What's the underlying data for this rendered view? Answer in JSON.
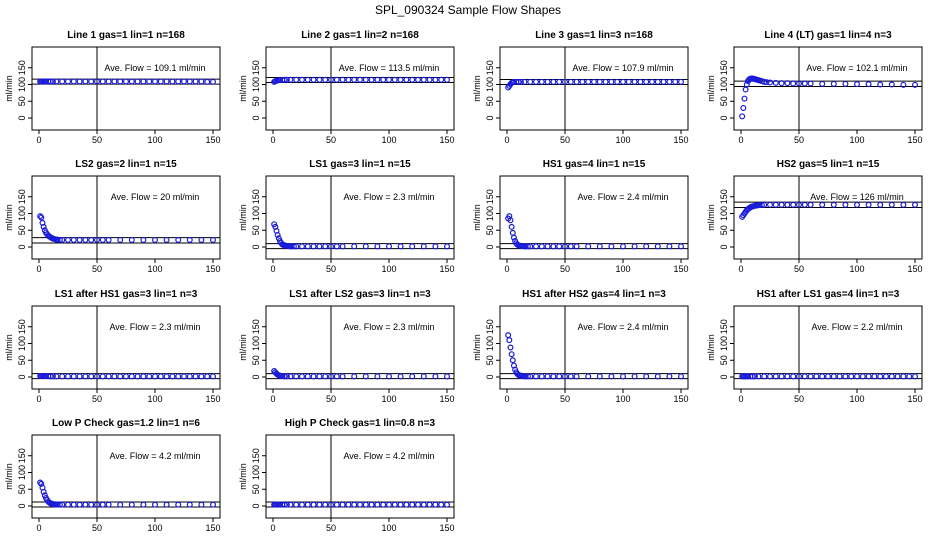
{
  "figure_title": "SPL_090324  Sample Flow Shapes",
  "colors": {
    "points": "#1a1ad9",
    "axes": "#000000",
    "background": "#ffffff"
  },
  "chart_data": [
    {
      "type": "scatter",
      "title": "Line 1 gas=1 lin=1 n=168",
      "ylabel": "ml/min",
      "annotation": "Ave. Flow =  109.1  ml/min",
      "xlim": [
        0,
        150
      ],
      "ylim": [
        0,
        200
      ],
      "xticks": [
        "0",
        "50",
        "100",
        "150"
      ],
      "yticks": [
        "0",
        "50",
        "100",
        "150"
      ],
      "vline": 50,
      "hlines": [
        101,
        116
      ],
      "x": [
        1,
        2,
        3,
        4,
        5,
        6,
        8,
        10,
        12,
        15,
        20,
        25,
        30,
        35,
        40,
        45,
        50,
        55,
        60,
        65,
        70,
        75,
        80,
        85,
        90,
        95,
        100,
        105,
        110,
        115,
        120,
        125,
        130,
        135,
        140,
        145,
        150
      ],
      "y": [
        109,
        109,
        109,
        109,
        109,
        109,
        109,
        109,
        109,
        109,
        109,
        109,
        109,
        109,
        109,
        109,
        109,
        109,
        109,
        109,
        109,
        109,
        109,
        109,
        109,
        109,
        109,
        109,
        109,
        109,
        109,
        109,
        109,
        109,
        109,
        108,
        108
      ]
    },
    {
      "type": "scatter",
      "title": "Line 2 gas=1 lin=2 n=168",
      "ylabel": "ml/min",
      "annotation": "Ave. Flow =  113.5  ml/min",
      "xlim": [
        0,
        150
      ],
      "ylim": [
        0,
        200
      ],
      "xticks": [
        "0",
        "50",
        "100",
        "150"
      ],
      "yticks": [
        "0",
        "50",
        "100",
        "150"
      ],
      "vline": 50,
      "hlines": [
        106,
        121
      ],
      "x": [
        1,
        2,
        3,
        4,
        5,
        6,
        8,
        10,
        12,
        15,
        20,
        25,
        30,
        35,
        40,
        45,
        50,
        55,
        60,
        65,
        70,
        75,
        80,
        85,
        90,
        95,
        100,
        105,
        110,
        115,
        120,
        125,
        130,
        135,
        140,
        145,
        150
      ],
      "y": [
        108,
        110,
        111,
        112,
        113,
        113,
        113,
        114,
        114,
        114,
        114,
        114,
        114,
        114,
        114,
        114,
        114,
        114,
        114,
        114,
        114,
        114,
        114,
        114,
        114,
        114,
        114,
        114,
        114,
        114,
        114,
        114,
        114,
        114,
        114,
        114,
        114
      ]
    },
    {
      "type": "scatter",
      "title": "Line 3 gas=1 lin=3 n=168",
      "ylabel": "ml/min",
      "annotation": "Ave. Flow =  107.9  ml/min",
      "xlim": [
        0,
        150
      ],
      "ylim": [
        0,
        200
      ],
      "xticks": [
        "0",
        "50",
        "100",
        "150"
      ],
      "yticks": [
        "0",
        "50",
        "100",
        "150"
      ],
      "vline": 50,
      "hlines": [
        100,
        115
      ],
      "x": [
        1,
        2,
        3,
        4,
        5,
        6,
        8,
        10,
        12,
        15,
        20,
        25,
        30,
        35,
        40,
        45,
        50,
        55,
        60,
        65,
        70,
        75,
        80,
        85,
        90,
        95,
        100,
        105,
        110,
        115,
        120,
        125,
        130,
        135,
        140,
        145,
        150
      ],
      "y": [
        91,
        96,
        101,
        105,
        107,
        108,
        108,
        108,
        108,
        108,
        108,
        108,
        108,
        108,
        108,
        108,
        108,
        108,
        108,
        108,
        108,
        108,
        108,
        108,
        108,
        108,
        108,
        108,
        108,
        108,
        108,
        108,
        108,
        108,
        108,
        108,
        108
      ]
    },
    {
      "type": "scatter",
      "title": "Line 4 (LT) gas=1 lin=4 n=3",
      "ylabel": "ml/min",
      "annotation": "Ave. Flow =  102.1  ml/min",
      "xlim": [
        0,
        150
      ],
      "ylim": [
        0,
        200
      ],
      "xticks": [
        "0",
        "50",
        "100",
        "150"
      ],
      "yticks": [
        "0",
        "50",
        "100",
        "150"
      ],
      "vline": 50,
      "hlines": [
        94,
        110
      ],
      "x": [
        1,
        2,
        3,
        4,
        5,
        6,
        7,
        8,
        9,
        10,
        11,
        12,
        13,
        14,
        15,
        16,
        18,
        20,
        22,
        25,
        30,
        35,
        40,
        45,
        50,
        55,
        60,
        70,
        80,
        90,
        100,
        110,
        120,
        130,
        140,
        150
      ],
      "y": [
        5,
        30,
        58,
        85,
        100,
        110,
        115,
        117,
        118,
        118,
        117,
        116,
        115,
        114,
        113,
        112,
        110,
        108,
        107,
        106,
        105,
        104,
        104,
        103,
        103,
        103,
        103,
        102,
        102,
        102,
        101,
        101,
        100,
        100,
        99,
        99
      ]
    },
    {
      "type": "scatter",
      "title": "LS2 gas=2 lin=1 n=15",
      "ylabel": "ml/min",
      "annotation": "Ave. Flow =  20  ml/min",
      "xlim": [
        0,
        150
      ],
      "ylim": [
        0,
        200
      ],
      "xticks": [
        "0",
        "50",
        "100",
        "150"
      ],
      "yticks": [
        "0",
        "50",
        "100",
        "150"
      ],
      "vline": 50,
      "hlines": [
        12,
        28
      ],
      "x": [
        1,
        2,
        3,
        4,
        5,
        6,
        7,
        8,
        9,
        10,
        11,
        12,
        13,
        14,
        15,
        16,
        18,
        20,
        25,
        30,
        35,
        40,
        45,
        50,
        55,
        60,
        70,
        80,
        90,
        100,
        110,
        120,
        130,
        140,
        150
      ],
      "y": [
        92,
        88,
        72,
        60,
        50,
        43,
        38,
        34,
        31,
        29,
        27,
        25,
        24,
        23,
        22,
        22,
        21,
        21,
        21,
        21,
        21,
        21,
        21,
        21,
        21,
        21,
        21,
        21,
        21,
        21,
        21,
        21,
        21,
        21,
        21
      ]
    },
    {
      "type": "scatter",
      "title": "LS1 gas=3 lin=1 n=15",
      "ylabel": "ml/min",
      "annotation": "Ave. Flow =  2.3  ml/min",
      "xlim": [
        0,
        150
      ],
      "ylim": [
        0,
        200
      ],
      "xticks": [
        "0",
        "50",
        "100",
        "150"
      ],
      "yticks": [
        "0",
        "50",
        "100",
        "150"
      ],
      "vline": 50,
      "hlines": [
        -5,
        10
      ],
      "x": [
        1,
        2,
        3,
        4,
        5,
        6,
        7,
        8,
        9,
        10,
        11,
        12,
        13,
        14,
        15,
        16,
        18,
        20,
        25,
        30,
        35,
        40,
        45,
        50,
        55,
        60,
        70,
        80,
        90,
        100,
        110,
        120,
        130,
        140,
        150
      ],
      "y": [
        68,
        60,
        48,
        36,
        26,
        18,
        12,
        8,
        6,
        5,
        4,
        3,
        3,
        3,
        2,
        2,
        2,
        2,
        2,
        2,
        2,
        2,
        2,
        2,
        2,
        2,
        2,
        2,
        2,
        2,
        2,
        2,
        2,
        2,
        2
      ]
    },
    {
      "type": "scatter",
      "title": "HS1 gas=4 lin=1 n=15",
      "ylabel": "ml/min",
      "annotation": "Ave. Flow =  2.4  ml/min",
      "xlim": [
        0,
        150
      ],
      "ylim": [
        0,
        200
      ],
      "xticks": [
        "0",
        "50",
        "100",
        "150"
      ],
      "yticks": [
        "0",
        "50",
        "100",
        "150"
      ],
      "vline": 50,
      "hlines": [
        -5,
        10
      ],
      "x": [
        1,
        2,
        3,
        4,
        5,
        6,
        7,
        8,
        9,
        10,
        11,
        12,
        13,
        14,
        15,
        16,
        18,
        20,
        25,
        30,
        35,
        40,
        45,
        50,
        55,
        60,
        70,
        80,
        90,
        100,
        110,
        120,
        130,
        140,
        150
      ],
      "y": [
        85,
        92,
        80,
        60,
        42,
        28,
        18,
        11,
        7,
        5,
        4,
        3,
        3,
        3,
        2,
        2,
        2,
        2,
        2,
        2,
        2,
        2,
        2,
        2,
        2,
        2,
        2,
        2,
        2,
        2,
        2,
        2,
        2,
        2,
        2
      ]
    },
    {
      "type": "scatter",
      "title": "HS2 gas=5 lin=1 n=15",
      "ylabel": "ml/min",
      "annotation": "Ave. Flow =  126  ml/min",
      "xlim": [
        0,
        150
      ],
      "ylim": [
        0,
        200
      ],
      "xticks": [
        "0",
        "50",
        "100",
        "150"
      ],
      "yticks": [
        "0",
        "50",
        "100",
        "150"
      ],
      "vline": 50,
      "hlines": [
        118,
        134
      ],
      "x": [
        1,
        2,
        3,
        4,
        5,
        6,
        7,
        8,
        9,
        10,
        11,
        12,
        13,
        14,
        15,
        16,
        18,
        20,
        25,
        30,
        35,
        40,
        45,
        50,
        55,
        60,
        70,
        80,
        90,
        100,
        110,
        120,
        130,
        140,
        150
      ],
      "y": [
        90,
        95,
        100,
        105,
        110,
        113,
        116,
        118,
        120,
        121,
        122,
        123,
        124,
        124,
        125,
        125,
        125,
        126,
        126,
        126,
        126,
        126,
        126,
        126,
        126,
        126,
        126,
        126,
        126,
        126,
        126,
        126,
        126,
        126,
        126
      ]
    },
    {
      "type": "scatter",
      "title": "LS1 after HS1 gas=3 lin=1 n=3",
      "ylabel": "ml/min",
      "annotation": "Ave. Flow =  2.3  ml/min",
      "xlim": [
        0,
        150
      ],
      "ylim": [
        0,
        200
      ],
      "xticks": [
        "0",
        "50",
        "100",
        "150"
      ],
      "yticks": [
        "0",
        "50",
        "100",
        "150"
      ],
      "vline": 50,
      "hlines": [
        -5,
        10
      ],
      "x": [
        1,
        2,
        3,
        4,
        5,
        6,
        8,
        10,
        12,
        15,
        20,
        25,
        30,
        35,
        40,
        45,
        50,
        55,
        60,
        65,
        70,
        75,
        80,
        85,
        90,
        95,
        100,
        105,
        110,
        115,
        120,
        125,
        130,
        135,
        140,
        145,
        150
      ],
      "y": [
        3,
        3,
        3,
        3,
        3,
        3,
        3,
        2,
        2,
        2,
        2,
        2,
        2,
        2,
        2,
        2,
        2,
        2,
        2,
        2,
        2,
        2,
        2,
        2,
        2,
        2,
        2,
        2,
        2,
        2,
        2,
        2,
        2,
        2,
        2,
        2,
        2
      ]
    },
    {
      "type": "scatter",
      "title": "LS1 after LS2 gas=3 lin=1 n=3",
      "ylabel": "ml/min",
      "annotation": "Ave. Flow =  2.3  ml/min",
      "xlim": [
        0,
        150
      ],
      "ylim": [
        0,
        200
      ],
      "xticks": [
        "0",
        "50",
        "100",
        "150"
      ],
      "yticks": [
        "0",
        "50",
        "100",
        "150"
      ],
      "vline": 50,
      "hlines": [
        -5,
        10
      ],
      "x": [
        1,
        2,
        3,
        4,
        5,
        6,
        7,
        8,
        10,
        12,
        15,
        20,
        25,
        30,
        35,
        40,
        45,
        50,
        55,
        60,
        70,
        80,
        90,
        100,
        110,
        120,
        130,
        140,
        150
      ],
      "y": [
        18,
        14,
        10,
        7,
        5,
        4,
        3,
        3,
        2,
        2,
        2,
        2,
        2,
        2,
        2,
        2,
        2,
        2,
        2,
        2,
        2,
        2,
        2,
        2,
        2,
        2,
        2,
        2,
        2
      ]
    },
    {
      "type": "scatter",
      "title": "HS1 after HS2 gas=4 lin=1 n=3",
      "ylabel": "ml/min",
      "annotation": "Ave. Flow =  2.4  ml/min",
      "xlim": [
        0,
        150
      ],
      "ylim": [
        0,
        200
      ],
      "xticks": [
        "0",
        "50",
        "100",
        "150"
      ],
      "yticks": [
        "0",
        "50",
        "100",
        "150"
      ],
      "vline": 50,
      "hlines": [
        -5,
        10
      ],
      "x": [
        1,
        2,
        3,
        4,
        5,
        6,
        7,
        8,
        9,
        10,
        11,
        12,
        13,
        14,
        15,
        16,
        18,
        20,
        25,
        30,
        35,
        40,
        45,
        50,
        55,
        60,
        70,
        80,
        90,
        100,
        110,
        120,
        130,
        140,
        150
      ],
      "y": [
        125,
        110,
        88,
        68,
        50,
        34,
        22,
        14,
        9,
        6,
        5,
        4,
        3,
        3,
        2,
        2,
        2,
        2,
        2,
        2,
        2,
        2,
        2,
        2,
        2,
        2,
        2,
        2,
        2,
        2,
        2,
        2,
        2,
        2,
        2
      ]
    },
    {
      "type": "scatter",
      "title": "HS1 after LS1 gas=4 lin=1 n=3",
      "ylabel": "ml/min",
      "annotation": "Ave. Flow =  2.2  ml/min",
      "xlim": [
        0,
        150
      ],
      "ylim": [
        0,
        200
      ],
      "xticks": [
        "0",
        "50",
        "100",
        "150"
      ],
      "yticks": [
        "0",
        "50",
        "100",
        "150"
      ],
      "vline": 50,
      "hlines": [
        -5,
        10
      ],
      "x": [
        1,
        2,
        3,
        4,
        5,
        6,
        8,
        10,
        12,
        15,
        20,
        25,
        30,
        35,
        40,
        45,
        50,
        55,
        60,
        65,
        70,
        75,
        80,
        85,
        90,
        95,
        100,
        105,
        110,
        115,
        120,
        125,
        130,
        135,
        140,
        145,
        150
      ],
      "y": [
        2,
        2,
        2,
        2,
        2,
        2,
        2,
        2,
        2,
        2,
        2,
        2,
        2,
        2,
        2,
        2,
        2,
        2,
        2,
        2,
        2,
        2,
        2,
        2,
        2,
        2,
        2,
        2,
        2,
        2,
        2,
        2,
        2,
        2,
        2,
        2,
        2
      ]
    },
    {
      "type": "scatter",
      "title": "Low P Check gas=1.2 lin=1 n=6",
      "ylabel": "ml/min",
      "annotation": "Ave. Flow =  4.2  ml/min",
      "xlim": [
        0,
        150
      ],
      "ylim": [
        0,
        200
      ],
      "xticks": [
        "0",
        "50",
        "100",
        "150"
      ],
      "yticks": [
        "0",
        "50",
        "100",
        "150"
      ],
      "vline": 50,
      "hlines": [
        -3,
        12
      ],
      "x": [
        1,
        2,
        3,
        4,
        5,
        6,
        7,
        8,
        9,
        10,
        11,
        12,
        13,
        14,
        15,
        16,
        18,
        20,
        25,
        30,
        35,
        40,
        45,
        50,
        55,
        60,
        70,
        80,
        90,
        100,
        110,
        120,
        130,
        140,
        150
      ],
      "y": [
        70,
        66,
        55,
        42,
        32,
        24,
        18,
        13,
        10,
        8,
        7,
        6,
        5,
        5,
        5,
        4,
        4,
        4,
        4,
        4,
        4,
        4,
        4,
        4,
        4,
        4,
        4,
        4,
        4,
        4,
        4,
        4,
        4,
        4,
        4
      ]
    },
    {
      "type": "scatter",
      "title": "High P Check gas=1 lin=0.8 n=3",
      "ylabel": "ml/min",
      "annotation": "Ave. Flow =  4.2  ml/min",
      "xlim": [
        0,
        150
      ],
      "ylim": [
        0,
        200
      ],
      "xticks": [
        "0",
        "50",
        "100",
        "150"
      ],
      "yticks": [
        "0",
        "50",
        "100",
        "150"
      ],
      "vline": 50,
      "hlines": [
        -3,
        12
      ],
      "x": [
        1,
        2,
        3,
        4,
        5,
        6,
        8,
        10,
        12,
        15,
        20,
        25,
        30,
        35,
        40,
        45,
        50,
        55,
        60,
        65,
        70,
        75,
        80,
        85,
        90,
        95,
        100,
        105,
        110,
        115,
        120,
        125,
        130,
        135,
        140,
        145,
        150
      ],
      "y": [
        4,
        4,
        4,
        4,
        4,
        4,
        4,
        4,
        4,
        4,
        4,
        4,
        4,
        4,
        4,
        4,
        4,
        4,
        4,
        4,
        4,
        4,
        4,
        4,
        4,
        4,
        4,
        4,
        4,
        4,
        4,
        4,
        4,
        4,
        4,
        4,
        4
      ]
    }
  ]
}
